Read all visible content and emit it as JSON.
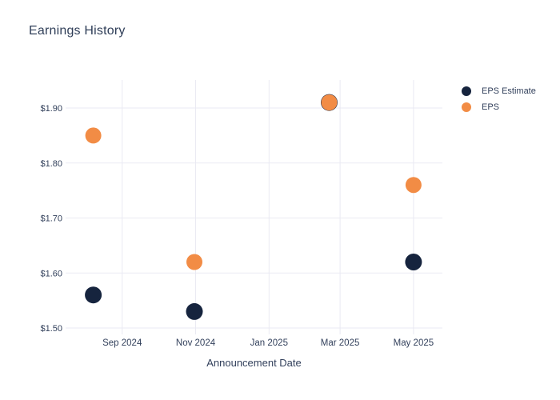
{
  "chart_data": {
    "type": "scatter",
    "title": "Earnings History",
    "xlabel": "Announcement Date",
    "ylabel": "",
    "grid": true,
    "legend_position": "top-right",
    "background_color": "#ffffff",
    "gridline_color": "#eaeaf3",
    "text_color": "#33415c",
    "title_color": "#2f3e58",
    "x_domain": [
      "2024-07-16",
      "2025-05-25"
    ],
    "ylim": [
      1.5,
      1.9
    ],
    "x_ticks": [
      {
        "date": "2024-09-01",
        "label": "Sep 2024"
      },
      {
        "date": "2024-11-01",
        "label": "Nov 2024"
      },
      {
        "date": "2025-01-01",
        "label": "Jan 2025"
      },
      {
        "date": "2025-03-01",
        "label": "Mar 2025"
      },
      {
        "date": "2025-05-01",
        "label": "May 2025"
      }
    ],
    "y_ticks": [
      {
        "value": 1.9,
        "label": "$1.90"
      },
      {
        "value": 1.8,
        "label": "$1.80"
      },
      {
        "value": 1.7,
        "label": "$1.70"
      },
      {
        "value": 1.6,
        "label": "$1.60"
      },
      {
        "value": 1.5,
        "label": "$1.50"
      }
    ],
    "series": [
      {
        "name": "EPS Estimate",
        "color": "#16243e",
        "points": [
          {
            "date": "2024-08-08",
            "value": 1.56
          },
          {
            "date": "2024-10-31",
            "value": 1.53
          },
          {
            "date": "2025-02-20",
            "value": 1.91
          },
          {
            "date": "2025-05-01",
            "value": 1.62
          }
        ]
      },
      {
        "name": "EPS",
        "color": "#f28c45",
        "points": [
          {
            "date": "2024-08-08",
            "value": 1.85
          },
          {
            "date": "2024-10-31",
            "value": 1.62
          },
          {
            "date": "2025-02-20",
            "value": 1.91
          },
          {
            "date": "2025-05-01",
            "value": 1.76
          }
        ]
      }
    ]
  }
}
